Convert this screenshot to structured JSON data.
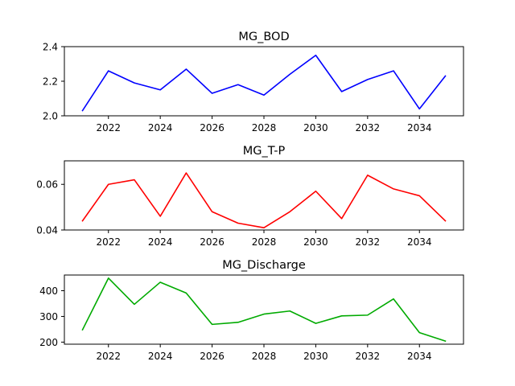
{
  "chart_data": [
    {
      "type": "line",
      "title": "MG_BOD",
      "color": "#0000ff",
      "x": [
        2021,
        2022,
        2023,
        2024,
        2025,
        2026,
        2027,
        2028,
        2029,
        2030,
        2031,
        2032,
        2033,
        2034,
        2035
      ],
      "values": [
        2.03,
        2.26,
        2.19,
        2.15,
        2.27,
        2.13,
        2.18,
        2.12,
        2.24,
        2.35,
        2.14,
        2.21,
        2.26,
        2.04,
        2.23
      ],
      "xlim": [
        2020.3,
        2035.7
      ],
      "ylim": [
        2.0,
        2.4
      ],
      "xticks": [
        2022,
        2024,
        2026,
        2028,
        2030,
        2032,
        2034
      ],
      "yticks": [
        2.0,
        2.2,
        2.4
      ],
      "ytick_labels": [
        "2.0",
        "2.2",
        "2.4"
      ],
      "grid": false
    },
    {
      "type": "line",
      "title": "MG_T-P",
      "color": "#ff0000",
      "x": [
        2021,
        2022,
        2023,
        2024,
        2025,
        2026,
        2027,
        2028,
        2029,
        2030,
        2031,
        2032,
        2033,
        2034,
        2035
      ],
      "values": [
        0.044,
        0.06,
        0.062,
        0.046,
        0.065,
        0.048,
        0.043,
        0.041,
        0.048,
        0.057,
        0.045,
        0.064,
        0.058,
        0.055,
        0.044
      ],
      "xlim": [
        2020.3,
        2035.7
      ],
      "ylim": [
        0.04,
        0.0703
      ],
      "xticks": [
        2022,
        2024,
        2026,
        2028,
        2030,
        2032,
        2034
      ],
      "yticks": [
        0.04,
        0.06
      ],
      "ytick_labels": [
        "0.04",
        "0.06"
      ],
      "grid": false
    },
    {
      "type": "line",
      "title": "MG_Discharge",
      "color": "#00aa00",
      "x": [
        2021,
        2022,
        2023,
        2024,
        2025,
        2026,
        2027,
        2028,
        2029,
        2030,
        2031,
        2032,
        2033,
        2034,
        2035
      ],
      "values": [
        248,
        449,
        347,
        433,
        391,
        269,
        277,
        309,
        321,
        273,
        302,
        305,
        368,
        237,
        204
      ],
      "xlim": [
        2020.3,
        2035.7
      ],
      "ylim": [
        192,
        461
      ],
      "xticks": [
        2022,
        2024,
        2026,
        2028,
        2030,
        2032,
        2034
      ],
      "yticks": [
        200,
        300,
        400
      ],
      "ytick_labels": [
        "200",
        "300",
        "400"
      ],
      "grid": false
    }
  ]
}
